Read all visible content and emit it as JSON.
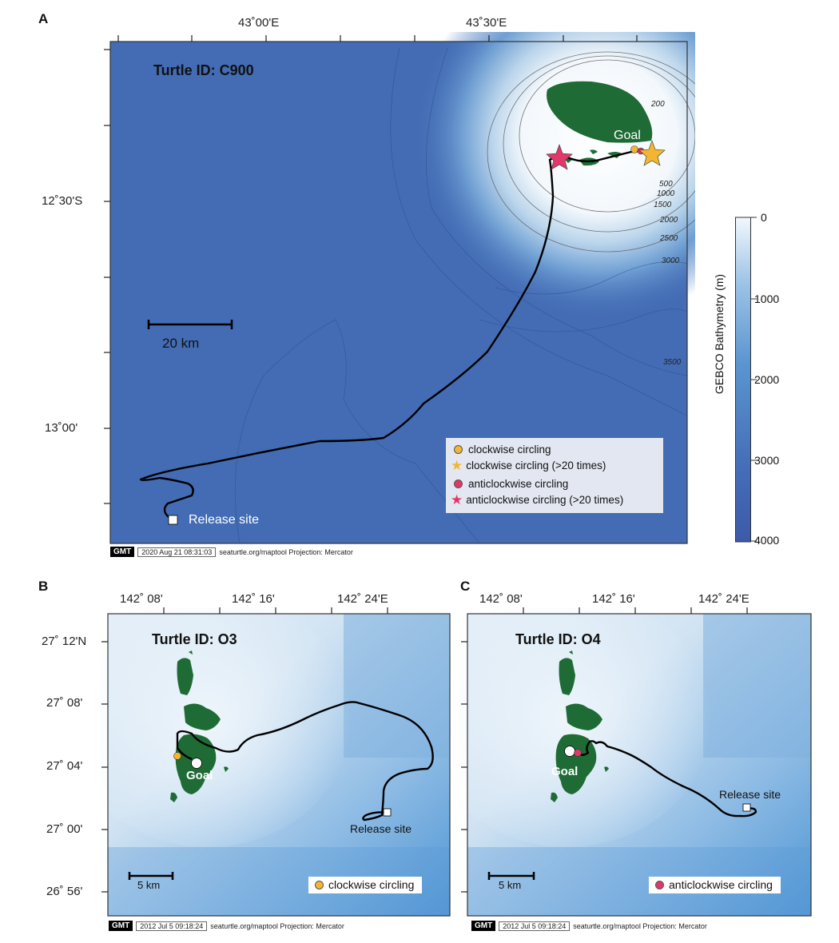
{
  "panel_a": {
    "label": "A",
    "title": "Turtle ID: C900",
    "lon_ticks": [
      "43˚00'E",
      "43˚30'E"
    ],
    "lat_ticks": [
      "12˚30'S",
      "13˚00'"
    ],
    "contours": [
      "200",
      "500",
      "1000",
      "1500",
      "2000",
      "2500",
      "3000",
      "3500"
    ],
    "goal": "Goal",
    "release": "Release site",
    "scale": "20 km",
    "legend": [
      {
        "marker": "yellow-circle",
        "text": "clockwise circling"
      },
      {
        "marker": "yellow-star",
        "text": "clockwise circling (>20 times)"
      },
      {
        "marker": "pink-circle",
        "text": "anticlockwise circling"
      },
      {
        "marker": "pink-star",
        "text": "anticlockwise circling (>20 times)"
      }
    ],
    "footer_logo": "GMT",
    "footer_date": "2020 Aug 21 08:31:03",
    "footer_text": "seaturtle.org/maptool Projection: Mercator"
  },
  "colorbar": {
    "label": "GEBCO Bathymetry (m)",
    "ticks": [
      "0",
      "1000",
      "2000",
      "3000",
      "4000"
    ],
    "colors": {
      "shallow": "#f2f8fd",
      "deep": "#3c5aa8"
    }
  },
  "panel_b": {
    "label": "B",
    "title": "Turtle ID: O3",
    "lon_ticks": [
      "142˚ 08'",
      "142˚ 16'",
      "142˚ 24'E"
    ],
    "lat_ticks": [
      "27˚ 12'N",
      "27˚ 08'",
      "27˚ 04'",
      "27˚ 00'",
      "26˚ 56'"
    ],
    "goal": "Goal",
    "release": "Release site",
    "scale": "5 km",
    "legend": "clockwise circling",
    "footer_logo": "GMT",
    "footer_date": "2012 Jul 5 09:18:24",
    "footer_text": "seaturtle.org/maptool Projection: Mercator"
  },
  "panel_c": {
    "label": "C",
    "title": "Turtle ID: O4",
    "lon_ticks": [
      "142˚ 08'",
      "142˚ 16'",
      "142˚ 24'E"
    ],
    "goal": "Goal",
    "release": "Release site",
    "scale": "5 km",
    "legend": "anticlockwise circling",
    "footer_logo": "GMT",
    "footer_date": "2012 Jul 5 09:18:24",
    "footer_text": "seaturtle.org/maptool Projection: Mercator"
  },
  "colors": {
    "land": "#1f6b35",
    "track": "#000000",
    "clockwise": "#f2b632",
    "anticlockwise": "#e0386a"
  }
}
